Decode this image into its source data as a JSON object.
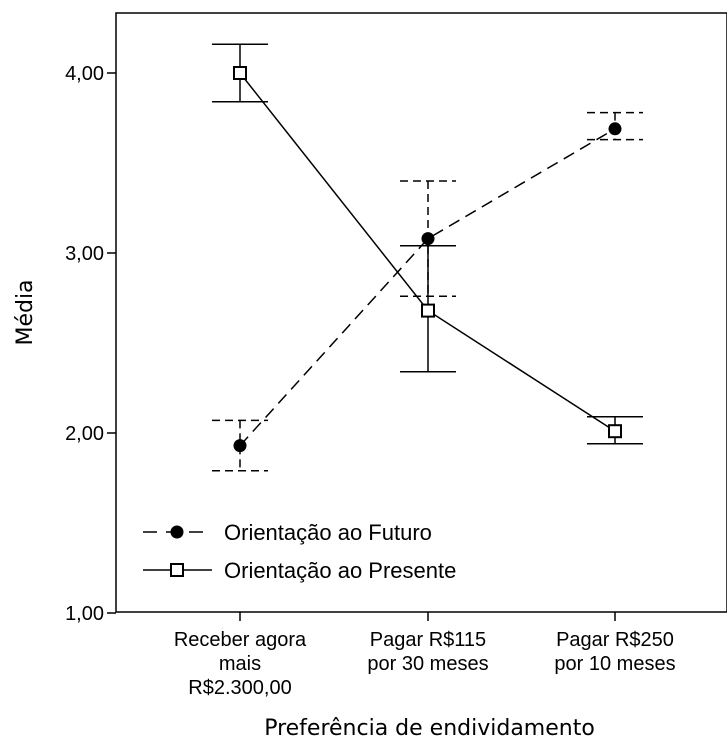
{
  "chart_data": {
    "type": "line",
    "title": "",
    "xlabel": "Preferência de endividamento",
    "ylabel": "Média",
    "ylim": [
      1.0,
      4.3
    ],
    "yticks": [
      {
        "value": 1.0,
        "label": "1,00"
      },
      {
        "value": 2.0,
        "label": "2,00"
      },
      {
        "value": 3.0,
        "label": "3,00"
      },
      {
        "value": 4.0,
        "label": "4,00"
      }
    ],
    "categories": [
      {
        "lines": [
          "Receber agora",
          "mais",
          "R$2.300,00"
        ]
      },
      {
        "lines": [
          "Pagar R$115",
          "por 30 meses"
        ]
      },
      {
        "lines": [
          "Pagar R$250",
          "por 10 meses"
        ]
      }
    ],
    "legend_position": "bottom-left",
    "series": [
      {
        "name": "Orientação ao Futuro",
        "line_style": "dashed",
        "marker": "filled-circle",
        "color": "#000000",
        "values": [
          1.93,
          3.08,
          3.69
        ],
        "error_low": [
          1.79,
          2.76,
          3.63
        ],
        "error_high": [
          2.07,
          3.4,
          3.78
        ]
      },
      {
        "name": "Orientação ao Presente",
        "line_style": "solid",
        "marker": "open-square",
        "color": "#000000",
        "values": [
          4.0,
          2.68,
          2.01
        ],
        "error_low": [
          3.84,
          2.34,
          1.94
        ],
        "error_high": [
          4.16,
          3.04,
          2.09
        ]
      }
    ]
  }
}
